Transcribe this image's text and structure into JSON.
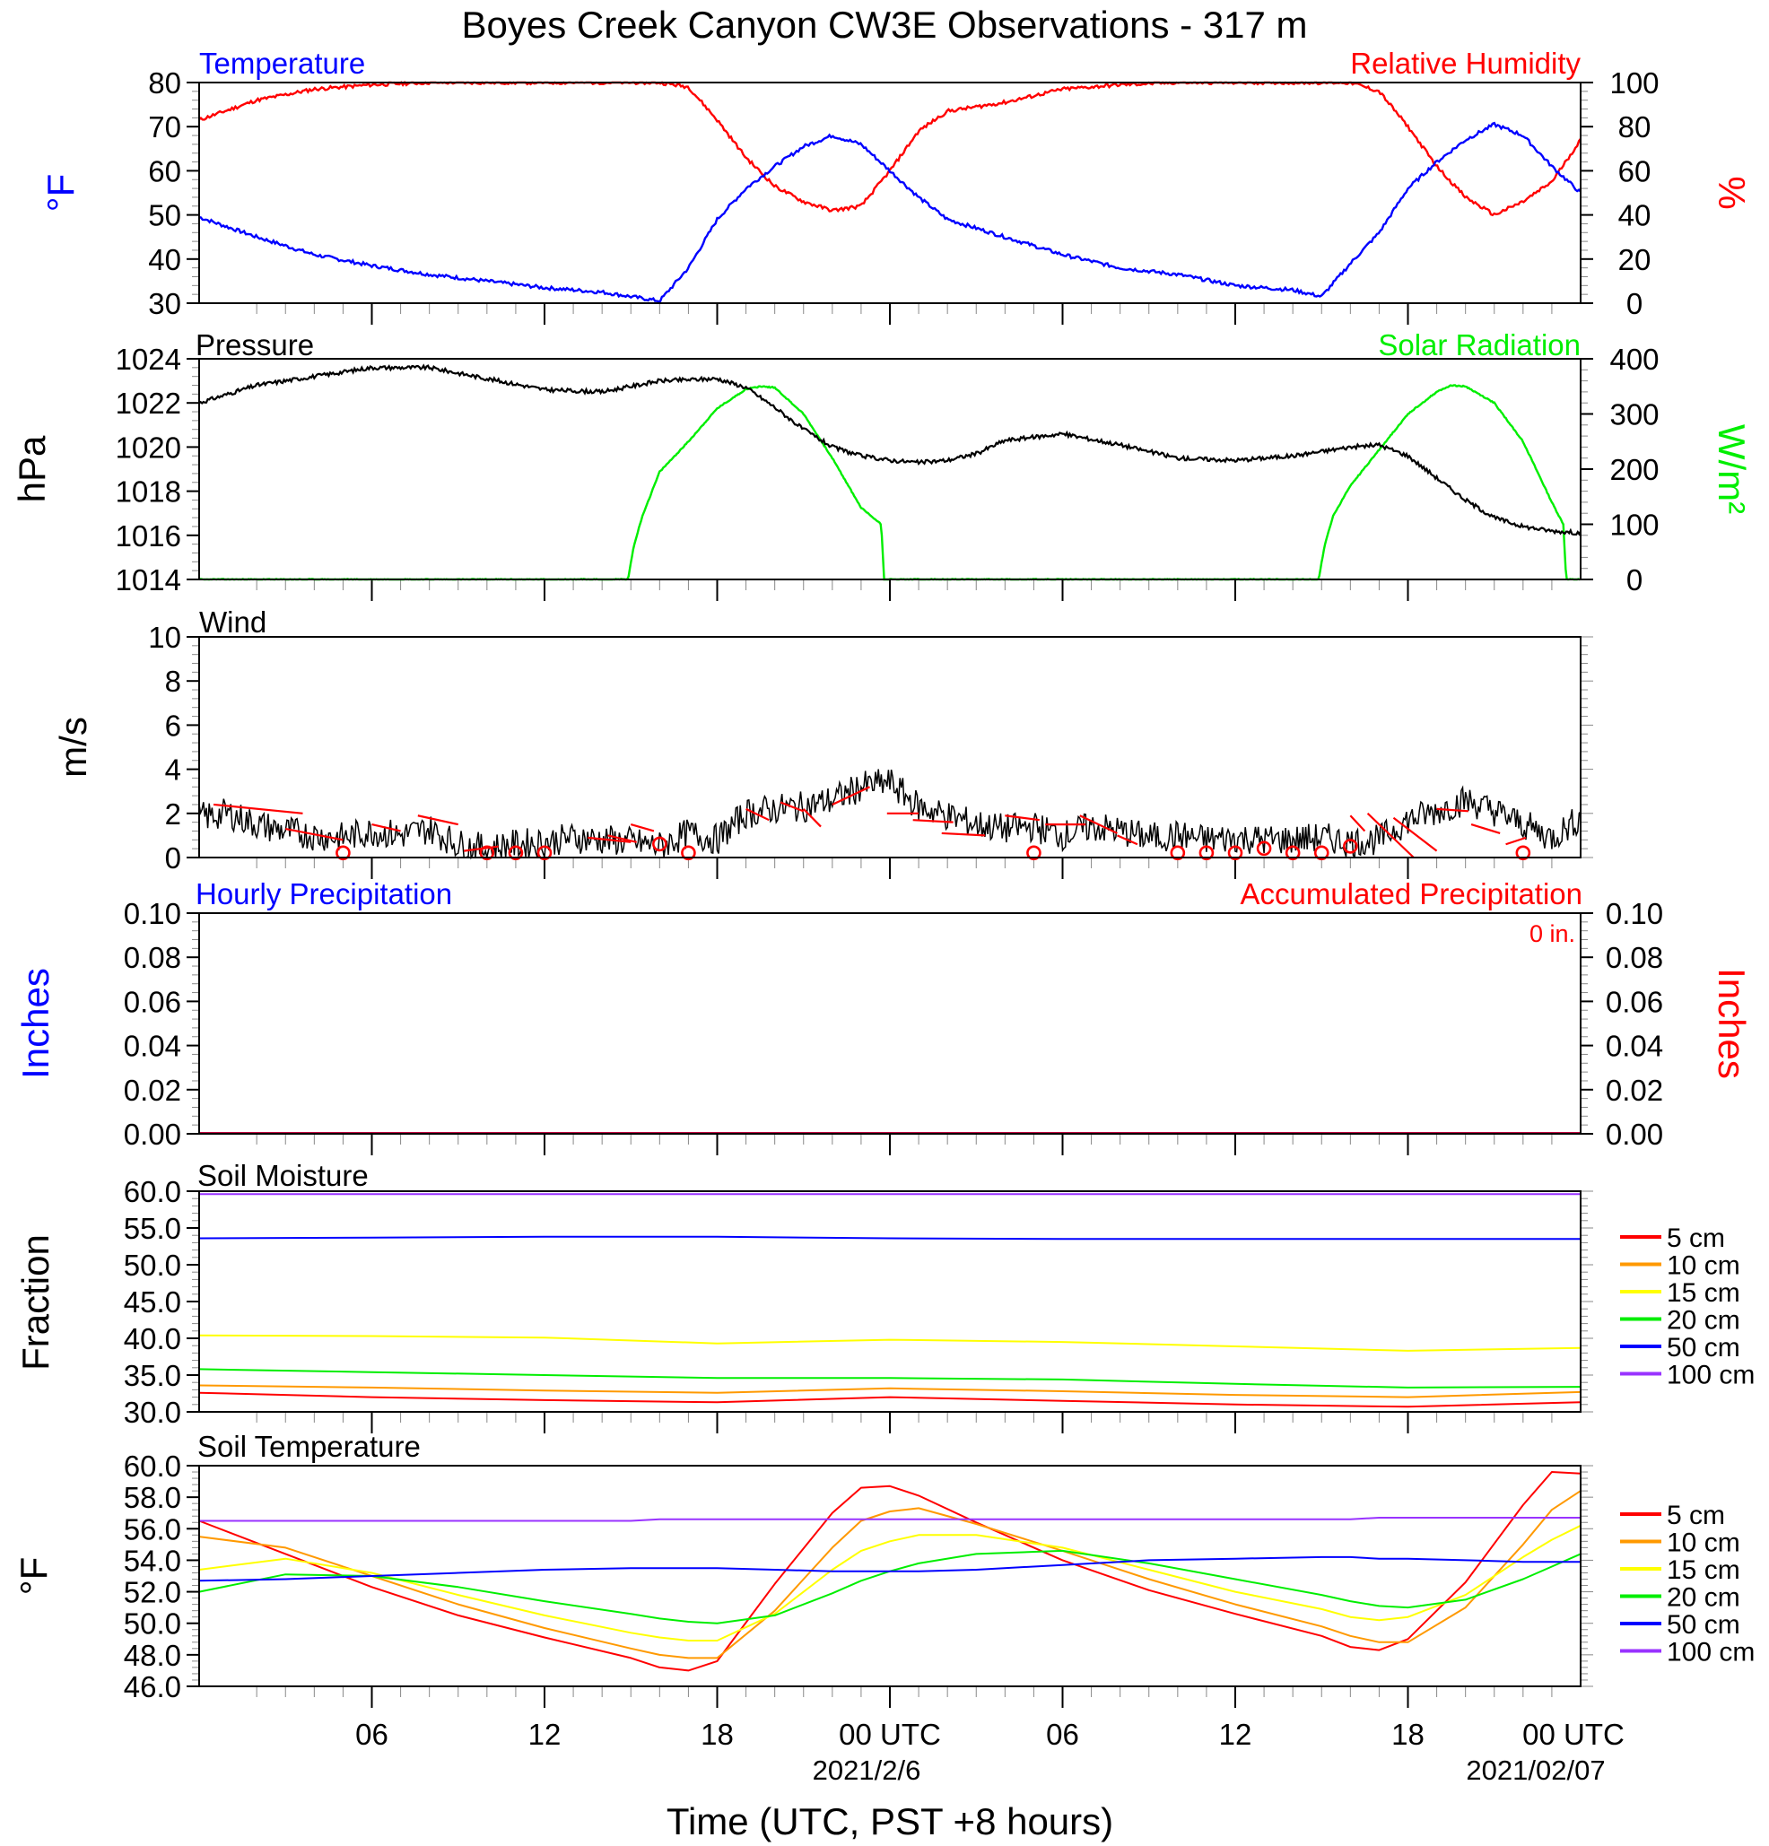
{
  "title": "Boyes Creek Canyon CW3E Observations - 317 m",
  "colors": {
    "temperature": "#0000ff",
    "humidity": "#ff0000",
    "pressure": "#000000",
    "solar": "#00ee00",
    "wind": "#000000",
    "wind_barb": "#ff0000",
    "precip_hourly": "#0000ff",
    "precip_accum": "#ff0000",
    "depth_colors": [
      "#ff0000",
      "#ff9900",
      "#ffff00",
      "#00ee00",
      "#0000ff",
      "#9933ff"
    ]
  },
  "time_axis": {
    "tick_labels": [
      "06",
      "12",
      "18",
      "00 UTC",
      "06",
      "12",
      "18",
      "00 UTC"
    ],
    "date_labels": [
      "2021/2/6",
      "2021/02/07"
    ],
    "xlabel": "Time (UTC, PST +8 hours)"
  },
  "legend_labels": [
    "5 cm",
    "10 cm",
    "15 cm",
    "20 cm",
    "50 cm",
    "100 cm"
  ],
  "chart_data": [
    {
      "type": "line",
      "title": "Temperature",
      "title_right": "Relative Humidity",
      "ylabel": "°F",
      "ylabel_right": "%",
      "ylim": [
        30,
        80
      ],
      "ylim_right": [
        0,
        100
      ],
      "yticks": [
        "30",
        "40",
        "50",
        "60",
        "70",
        "80"
      ],
      "yticks_right": [
        "0",
        "20",
        "40",
        "60",
        "80",
        "100"
      ],
      "x_hours": [
        0,
        2,
        4,
        6,
        8,
        10,
        12,
        14,
        15,
        16,
        17,
        18,
        19,
        20,
        21,
        22,
        23,
        24,
        25,
        26,
        28,
        30,
        32,
        34,
        36,
        38,
        39,
        40,
        41,
        42,
        43,
        44,
        45,
        46,
        47,
        48
      ],
      "series": [
        {
          "name": "Temperature",
          "values": [
            49.5,
            45,
            41,
            38.5,
            36.5,
            35,
            33.5,
            32.5,
            31.5,
            30.5,
            38,
            49,
            56,
            61,
            65.5,
            68,
            66,
            60,
            54,
            49,
            45,
            41,
            38,
            36.5,
            34,
            33,
            31.5,
            39,
            46,
            56,
            62,
            67,
            70.5,
            68,
            61,
            55
          ]
        },
        {
          "name": "Relative Humidity",
          "values": [
            83,
            92,
            97,
            99,
            100,
            100,
            100,
            100,
            100,
            100,
            98,
            83,
            66,
            53,
            46,
            42,
            44,
            60,
            78,
            87,
            91,
            97,
            99,
            100,
            100,
            100,
            100,
            100,
            96,
            80,
            62,
            48,
            40,
            46,
            55,
            74
          ]
        }
      ]
    },
    {
      "type": "line",
      "title": "Pressure",
      "title_right": "Solar Radiation",
      "ylabel": "hPa",
      "ylabel_right": "W/m²",
      "ylim": [
        1014,
        1024
      ],
      "ylim_right": [
        0,
        400
      ],
      "yticks": [
        "1014",
        "1016",
        "1018",
        "1020",
        "1022",
        "1024"
      ],
      "yticks_right": [
        "0",
        "100",
        "200",
        "300",
        "400"
      ],
      "series": [
        {
          "name": "Pressure",
          "x_hours": [
            0,
            2,
            4,
            6,
            8,
            10,
            12,
            14,
            16,
            18,
            19,
            20,
            21,
            22,
            23,
            24,
            25,
            26,
            27,
            28,
            30,
            32,
            34,
            36,
            38,
            40,
            41,
            42,
            43,
            44,
            45,
            46,
            47,
            48
          ],
          "values": [
            1022,
            1022.8,
            1023.2,
            1023.6,
            1023.6,
            1023.1,
            1022.6,
            1022.5,
            1023,
            1023.1,
            1022.7,
            1021.8,
            1020.8,
            1020,
            1019.6,
            1019.4,
            1019.3,
            1019.4,
            1019.7,
            1020.3,
            1020.6,
            1020.1,
            1019.5,
            1019.4,
            1019.6,
            1020,
            1020.1,
            1019.6,
            1018.6,
            1017.6,
            1016.8,
            1016.4,
            1016.2,
            1016.1
          ]
        },
        {
          "name": "Solar Radiation",
          "x_hours": [
            0,
            14.9,
            15.1,
            15.4,
            16,
            17,
            18,
            19,
            19.5,
            20,
            21,
            22,
            23,
            23.7,
            23.8,
            24,
            38.9,
            39.1,
            39.4,
            40,
            41,
            42,
            43,
            43.5,
            44,
            45,
            46,
            47,
            47.4,
            47.5,
            48
          ],
          "values": [
            0,
            0,
            60,
            115,
            195,
            250,
            310,
            345,
            350,
            348,
            300,
            220,
            130,
            100,
            0,
            0,
            0,
            60,
            115,
            170,
            235,
            300,
            340,
            352,
            350,
            320,
            250,
            140,
            100,
            0,
            0
          ]
        }
      ]
    },
    {
      "type": "line",
      "title": "Wind",
      "ylabel": "m/s",
      "ylim": [
        0,
        10
      ],
      "yticks": [
        "0",
        "2",
        "4",
        "6",
        "8",
        "10"
      ],
      "x_hours": [
        0,
        1,
        2,
        3,
        4,
        5,
        6,
        7,
        8,
        9,
        10,
        11,
        12,
        13,
        14,
        15,
        16,
        17,
        18,
        19,
        20,
        21,
        22,
        23,
        24,
        25,
        26,
        27,
        28,
        29,
        30,
        31,
        32,
        33,
        34,
        35,
        36,
        37,
        38,
        39,
        40,
        41,
        42,
        43,
        44,
        45,
        46,
        47,
        48
      ],
      "series": [
        {
          "name": "Wind",
          "values": [
            1.8,
            2.0,
            1.5,
            1.2,
            1.0,
            0.9,
            1.2,
            1.0,
            1.3,
            0.6,
            0.4,
            0.6,
            0.7,
            0.9,
            0.8,
            0.7,
            0.5,
            1.1,
            0.8,
            2.0,
            2.2,
            2.3,
            2.6,
            3.2,
            3.4,
            2.3,
            1.9,
            1.5,
            1.3,
            1.4,
            1.0,
            1.4,
            1.2,
            0.9,
            1.0,
            0.8,
            0.9,
            0.8,
            0.8,
            0.9,
            0.7,
            0.8,
            1.7,
            2.1,
            2.6,
            2.1,
            1.5,
            0.9,
            1.8
          ]
        }
      ]
    },
    {
      "type": "line",
      "title": "Hourly Precipitation",
      "title_right": "Accumulated Precipitation",
      "annotation": "0 in.",
      "ylabel": "Inches",
      "ylabel_right": "Inches",
      "ylim": [
        0,
        0.1
      ],
      "ylim_right": [
        0,
        0.1
      ],
      "yticks": [
        "0.00",
        "0.02",
        "0.04",
        "0.06",
        "0.08",
        "0.10"
      ],
      "yticks_right": [
        "0.00",
        "0.02",
        "0.04",
        "0.06",
        "0.08",
        "0.10"
      ],
      "x_hours": [
        0,
        48
      ],
      "series": [
        {
          "name": "Hourly Precipitation",
          "values": [
            0,
            0
          ]
        },
        {
          "name": "Accumulated Precipitation",
          "values": [
            0,
            0
          ]
        }
      ]
    },
    {
      "type": "line",
      "title": "Soil Moisture",
      "ylabel": "Fraction",
      "ylim": [
        30,
        60
      ],
      "yticks": [
        "30.0",
        "35.0",
        "40.0",
        "45.0",
        "50.0",
        "55.0",
        "60.0"
      ],
      "x_hours": [
        0,
        6,
        12,
        18,
        24,
        30,
        36,
        42,
        48
      ],
      "series": [
        {
          "name": "5 cm",
          "values": [
            32.6,
            32.0,
            31.6,
            31.3,
            32.0,
            31.5,
            31.0,
            30.7,
            31.3
          ]
        },
        {
          "name": "10 cm",
          "values": [
            33.6,
            33.3,
            32.9,
            32.6,
            33.2,
            32.8,
            32.3,
            32.0,
            32.7
          ]
        },
        {
          "name": "15 cm",
          "values": [
            40.4,
            40.3,
            40.1,
            39.3,
            39.8,
            39.5,
            38.9,
            38.3,
            38.7
          ]
        },
        {
          "name": "20 cm",
          "values": [
            35.8,
            35.4,
            35.0,
            34.6,
            34.6,
            34.4,
            33.8,
            33.3,
            33.4
          ]
        },
        {
          "name": "50 cm",
          "values": [
            53.6,
            53.7,
            53.8,
            53.8,
            53.6,
            53.5,
            53.5,
            53.5,
            53.5
          ]
        },
        {
          "name": "100 cm",
          "values": [
            59.6,
            59.6,
            59.6,
            59.6,
            59.6,
            59.6,
            59.6,
            59.6,
            59.6
          ]
        }
      ]
    },
    {
      "type": "line",
      "title": "Soil Temperature",
      "ylabel": "°F",
      "ylim": [
        46,
        60
      ],
      "yticks": [
        "46.0",
        "48.0",
        "50.0",
        "52.0",
        "54.0",
        "56.0",
        "58.0",
        "60.0"
      ],
      "x_hours": [
        0,
        3,
        6,
        9,
        12,
        15,
        16,
        17,
        18,
        20,
        22,
        23,
        24,
        25,
        27,
        30,
        33,
        36,
        39,
        40,
        41,
        42,
        44,
        46,
        47,
        48
      ],
      "series": [
        {
          "name": "5 cm",
          "values": [
            56.5,
            54.4,
            52.3,
            50.5,
            49.1,
            47.8,
            47.2,
            47.0,
            47.6,
            52.5,
            57.0,
            58.6,
            58.7,
            58.1,
            56.4,
            54.0,
            52.1,
            50.6,
            49.2,
            48.5,
            48.3,
            49.0,
            52.6,
            57.5,
            59.6,
            59.5
          ]
        },
        {
          "name": "10 cm",
          "values": [
            55.5,
            54.8,
            53.0,
            51.2,
            49.7,
            48.4,
            48.0,
            47.8,
            47.8,
            50.8,
            54.8,
            56.5,
            57.1,
            57.3,
            56.3,
            54.6,
            52.8,
            51.2,
            49.8,
            49.2,
            48.8,
            48.8,
            51.0,
            55.0,
            57.2,
            58.4
          ]
        },
        {
          "name": "15 cm",
          "values": [
            53.4,
            54.1,
            53.2,
            51.8,
            50.5,
            49.4,
            49.1,
            48.9,
            48.9,
            50.6,
            53.4,
            54.6,
            55.2,
            55.6,
            55.6,
            54.8,
            53.4,
            52.0,
            50.9,
            50.4,
            50.2,
            50.4,
            51.8,
            54.2,
            55.3,
            56.2
          ]
        },
        {
          "name": "20 cm",
          "values": [
            52.0,
            53.1,
            53.0,
            52.3,
            51.4,
            50.6,
            50.3,
            50.1,
            50.0,
            50.5,
            51.9,
            52.7,
            53.3,
            53.8,
            54.4,
            54.6,
            53.8,
            52.8,
            51.8,
            51.4,
            51.1,
            51.0,
            51.5,
            52.8,
            53.6,
            54.4
          ]
        },
        {
          "name": "50 cm",
          "values": [
            52.7,
            52.8,
            53.0,
            53.2,
            53.4,
            53.5,
            53.5,
            53.5,
            53.5,
            53.4,
            53.3,
            53.3,
            53.3,
            53.3,
            53.4,
            53.7,
            54.0,
            54.1,
            54.2,
            54.2,
            54.1,
            54.1,
            54.0,
            53.9,
            53.9,
            53.9
          ]
        },
        {
          "name": "100 cm",
          "values": [
            56.5,
            56.5,
            56.5,
            56.5,
            56.5,
            56.5,
            56.6,
            56.6,
            56.6,
            56.6,
            56.6,
            56.6,
            56.6,
            56.6,
            56.6,
            56.6,
            56.6,
            56.6,
            56.6,
            56.6,
            56.7,
            56.7,
            56.7,
            56.7,
            56.7,
            56.7
          ]
        }
      ]
    }
  ]
}
